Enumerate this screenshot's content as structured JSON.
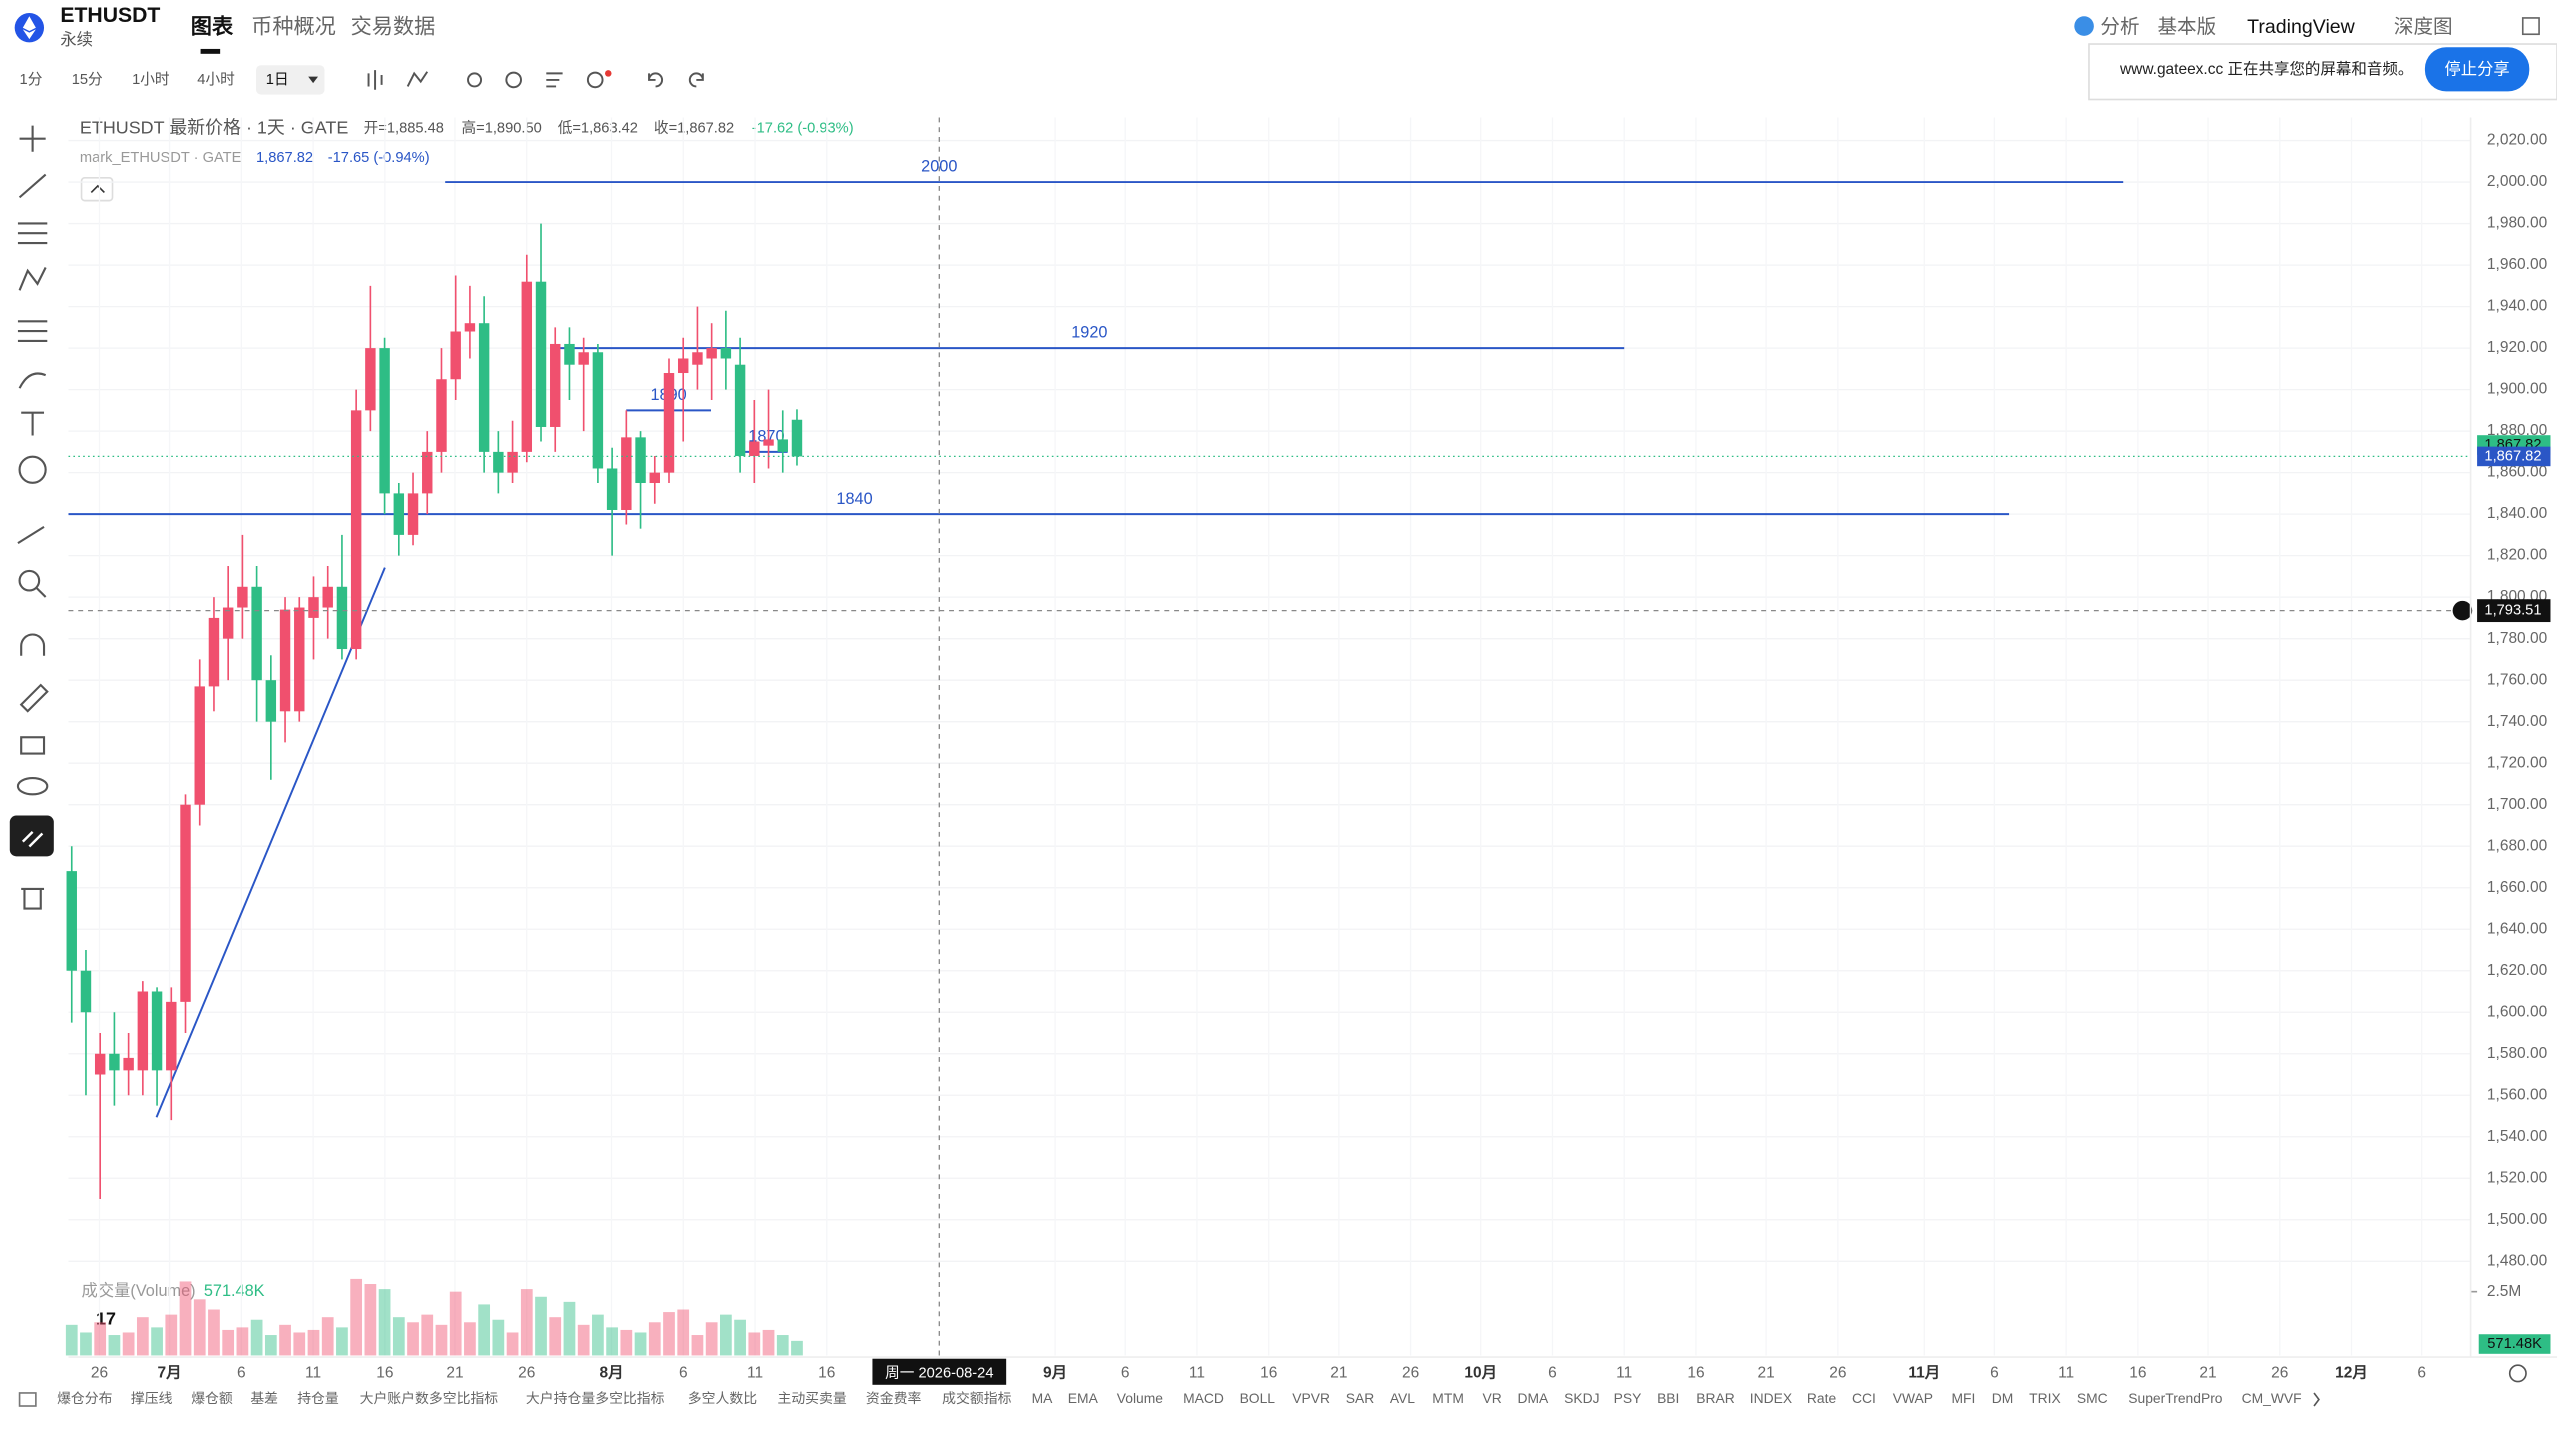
{
  "header": {
    "symbol": "ETHUSDT",
    "subtitle": "永续",
    "tabs": [
      "图表",
      "币种概况",
      "交易数据"
    ],
    "right_tabs": [
      "分析",
      "基本版",
      "TradingView",
      "深度图"
    ]
  },
  "toolbar": {
    "intervals": [
      "1分",
      "15分",
      "1小时",
      "4小时",
      "1日"
    ]
  },
  "share_banner": {
    "text": "www.gateex.cc 正在共享您的屏幕和音频。",
    "button": "停止分享"
  },
  "legend": {
    "title": "ETHUSDT 最新价格 · 1天 · GATE",
    "items": [
      "开=1,885.48",
      "高=1,890.50",
      "低=1,863.42",
      "收=1,867.82",
      "-17.62 (-0.93%)"
    ],
    "mark_name": "mark_ETHUSDT · GATE",
    "mark_price": "1,867.82",
    "mark_change": "-17.65 (-0.94%)"
  },
  "indicators": [
    "爆仓分布",
    "撑压线",
    "爆仓额",
    "基差",
    "持仓量",
    "大户账户数多空比指标",
    "大户持仓量多空比指标",
    "多空人数比",
    "主动买卖量",
    "资金费率",
    "成交额指标",
    "MA",
    "EMA",
    "Volume",
    "MACD",
    "BOLL",
    "VPVR",
    "SAR",
    "AVL",
    "MTM",
    "VR",
    "DMA",
    "SKDJ",
    "PSY",
    "BBI",
    "BRAR",
    "INDEX",
    "Rate",
    "CCI",
    "VWAP",
    "MFI",
    "DM",
    "TRIX",
    "SMC",
    "SuperTrendPro",
    "CM_WVF"
  ],
  "chart_data": {
    "type": "candlestick",
    "x_labels": [
      "26",
      "7月",
      "6",
      "11",
      "16",
      "21",
      "26",
      "8月",
      "6",
      "11",
      "16",
      "9月",
      "6",
      "11",
      "16",
      "21",
      "26",
      "10月",
      "6",
      "11",
      "16",
      "21",
      "26",
      "11月",
      "6",
      "11",
      "16",
      "21",
      "26",
      "12月",
      "6"
    ],
    "crosshair_date": "周一 2026-08-24",
    "crosshair_price": {
      "value": 1793.51,
      "label": "1,793.51"
    },
    "last_price": {
      "value": 1867.82,
      "label": "1,867.82"
    },
    "mark_price": {
      "value": 1867.82,
      "label": "1,867.82"
    },
    "up_color": "#f0506e",
    "down_color": "#2ebd85",
    "series": [
      {
        "name": "ETHUSDT",
        "open": [
          1668,
          1620,
          1570,
          1580,
          1572,
          1572,
          1610,
          1572,
          1605,
          1700,
          1757,
          1780,
          1795,
          1805,
          1760,
          1745,
          1745,
          1790,
          1795,
          1805,
          1775,
          1890,
          1920,
          1850,
          1830,
          1850,
          1870,
          1905,
          1928,
          1932,
          1870,
          1860,
          1870,
          1952,
          1882,
          1922,
          1912,
          1918,
          1862,
          1842,
          1877,
          1855,
          1860,
          1908,
          1912,
          1915,
          1920,
          1912,
          1868,
          1873,
          1876,
          1885.48
        ],
        "high": [
          1680,
          1630,
          1590,
          1600,
          1590,
          1615,
          1612,
          1612,
          1705,
          1770,
          1800,
          1815,
          1830,
          1815,
          1772,
          1800,
          1800,
          1810,
          1815,
          1830,
          1900,
          1950,
          1925,
          1855,
          1860,
          1880,
          1920,
          1955,
          1950,
          1945,
          1880,
          1885,
          1965,
          1980,
          1930,
          1930,
          1925,
          1922,
          1872,
          1890,
          1880,
          1868,
          1915,
          1925,
          1940,
          1932,
          1938,
          1925,
          1895,
          1900,
          1890,
          1890.5
        ],
        "low": [
          1595,
          1560,
          1510,
          1555,
          1560,
          1560,
          1555,
          1548,
          1590,
          1690,
          1745,
          1760,
          1780,
          1740,
          1712,
          1730,
          1740,
          1770,
          1780,
          1770,
          1770,
          1880,
          1840,
          1820,
          1825,
          1840,
          1860,
          1895,
          1915,
          1860,
          1850,
          1855,
          1865,
          1875,
          1870,
          1895,
          1880,
          1855,
          1820,
          1835,
          1833,
          1845,
          1855,
          1875,
          1900,
          1895,
          1900,
          1860,
          1855,
          1862,
          1860,
          1863.42
        ],
        "close": [
          1620,
          1600,
          1580,
          1572,
          1578,
          1610,
          1572,
          1605,
          1700,
          1757,
          1790,
          1795,
          1805,
          1760,
          1740,
          1794,
          1795,
          1800,
          1805,
          1775,
          1890,
          1920,
          1850,
          1830,
          1850,
          1870,
          1905,
          1928,
          1932,
          1870,
          1860,
          1870,
          1952,
          1882,
          1922,
          1912,
          1918,
          1862,
          1842,
          1877,
          1855,
          1860,
          1908,
          1915,
          1918,
          1920,
          1915,
          1868,
          1875,
          1876,
          1870,
          1867.82
        ]
      }
    ],
    "levels": [
      2000,
      1920,
      1840,
      1890,
      1870
    ],
    "level_color": "#2a56c6",
    "ylim": [
      1470,
      2028
    ],
    "yticks": [
      {
        "value": 1480,
        "label": "1,480.00"
      },
      {
        "value": 1500,
        "label": "1,500.00"
      },
      {
        "value": 1520,
        "label": "1,520.00"
      },
      {
        "value": 1540,
        "label": "1,540.00"
      },
      {
        "value": 1560,
        "label": "1,560.00"
      },
      {
        "value": 1580,
        "label": "1,580.00"
      },
      {
        "value": 1600,
        "label": "1,600.00"
      },
      {
        "value": 1620,
        "label": "1,620.00"
      },
      {
        "value": 1640,
        "label": "1,640.00"
      },
      {
        "value": 1660,
        "label": "1,660.00"
      },
      {
        "value": 1680,
        "label": "1,680.00"
      },
      {
        "value": 1700,
        "label": "1,700.00"
      },
      {
        "value": 1720,
        "label": "1,720.00"
      },
      {
        "value": 1740,
        "label": "1,740.00"
      },
      {
        "value": 1760,
        "label": "1,760.00"
      },
      {
        "value": 1780,
        "label": "1,780.00"
      },
      {
        "value": 1800,
        "label": "1,800.00"
      },
      {
        "value": 1820,
        "label": "1,820.00"
      },
      {
        "value": 1840,
        "label": "1,840.00"
      },
      {
        "value": 1860,
        "label": "1,860.00"
      },
      {
        "value": 1880,
        "label": "1,880.00"
      },
      {
        "value": 1900,
        "label": "1,900.00"
      },
      {
        "value": 1920,
        "label": "1,920.00"
      },
      {
        "value": 1940,
        "label": "1,940.00"
      },
      {
        "value": 1960,
        "label": "1,960.00"
      },
      {
        "value": 1980,
        "label": "1,980.00"
      },
      {
        "value": 2000,
        "label": "2,000.00"
      },
      {
        "value": 2020,
        "label": "2,020.00"
      }
    ],
    "grid": true,
    "volume": {
      "title": "成交量(Volume)",
      "last_label": "571.48K",
      "values": [
        1200000,
        900000,
        1300000,
        800000,
        900000,
        1500000,
        1100000,
        1600000,
        2900000,
        2200000,
        1800000,
        1000000,
        1100000,
        1400000,
        800000,
        1200000,
        900000,
        1000000,
        1500000,
        1100000,
        3000000,
        2800000,
        2600000,
        1500000,
        1300000,
        1600000,
        1200000,
        2500000,
        1300000,
        2000000,
        1400000,
        900000,
        2600000,
        2300000,
        1500000,
        2100000,
        1200000,
        1600000,
        1100000,
        1000000,
        900000,
        1300000,
        1700000,
        1800000,
        800000,
        1300000,
        1600000,
        1400000,
        900000,
        1000000,
        800000,
        571480
      ],
      "ylim": [
        0,
        3900000
      ],
      "yticks": [
        {
          "value": 2500000,
          "label": "2.5M"
        }
      ]
    }
  }
}
